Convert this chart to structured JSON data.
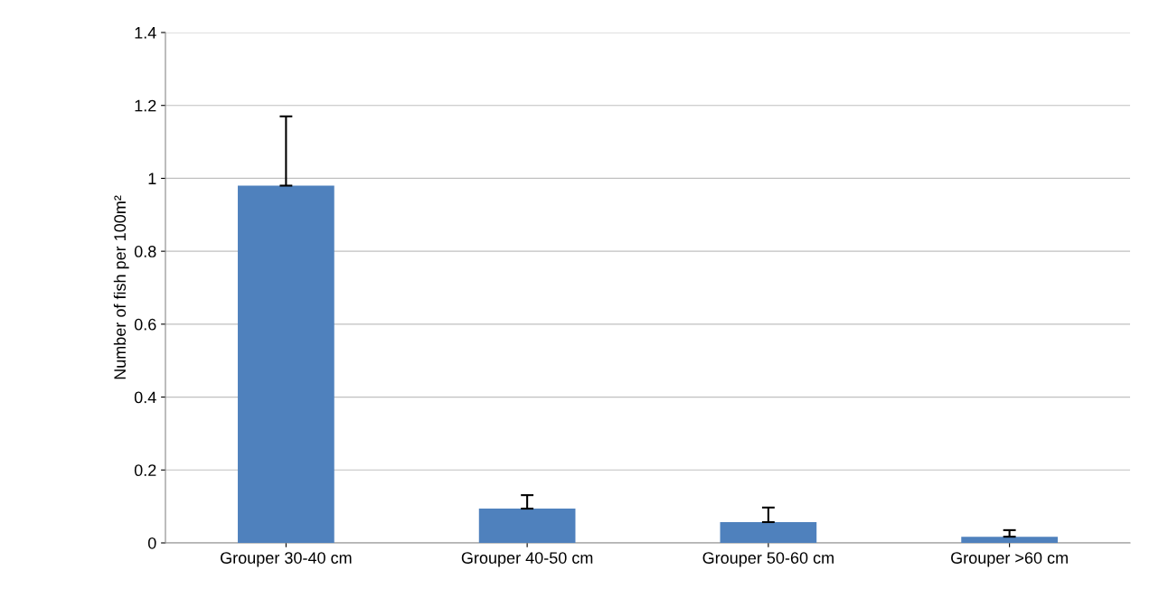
{
  "chart_data": {
    "type": "bar",
    "ylabel": "Number of fish per 100m²",
    "categories": [
      "Grouper 30-40 cm",
      "Grouper 40-50 cm",
      "Grouper 50-60 cm",
      "Grouper >60 cm"
    ],
    "values": [
      0.98,
      0.094,
      0.057,
      0.017
    ],
    "errors": [
      [
        0.98,
        1.17
      ],
      [
        0.094,
        0.131
      ],
      [
        0.057,
        0.097
      ],
      [
        0.017,
        0.035
      ]
    ],
    "color": "#4f81bd",
    "ylim": [
      0,
      1.4
    ],
    "yticks": [
      0,
      0.2,
      0.4,
      0.6,
      0.8,
      1,
      1.2,
      1.4
    ],
    "grid": "y"
  }
}
